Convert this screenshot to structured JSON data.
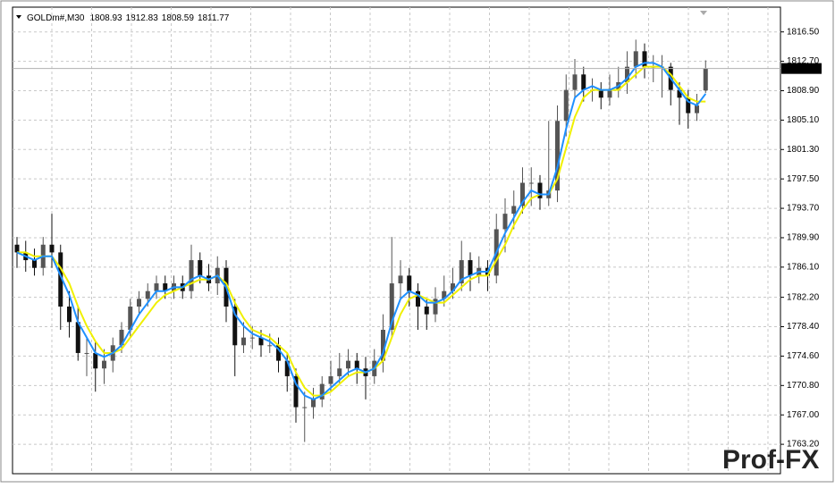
{
  "chart_data": {
    "type": "candlestick",
    "symbol": "GOLDm#,M30",
    "watermark": "Prof-FX",
    "up_color": "#555555",
    "down_color": "#111111",
    "grid": true,
    "ylim": [
      1759.4,
      1819.7
    ],
    "yticks": [
      {
        "value": 1763.2,
        "label": "1763.20"
      },
      {
        "value": 1767.0,
        "label": "1767.00"
      },
      {
        "value": 1770.8,
        "label": "1770.80"
      },
      {
        "value": 1774.6,
        "label": "1774.60"
      },
      {
        "value": 1778.4,
        "label": "1778.40"
      },
      {
        "value": 1782.2,
        "label": "1782.20"
      },
      {
        "value": 1786.1,
        "label": "1786.10"
      },
      {
        "value": 1789.9,
        "label": "1789.90"
      },
      {
        "value": 1793.7,
        "label": "1793.70"
      },
      {
        "value": 1797.5,
        "label": "1797.50"
      },
      {
        "value": 1801.3,
        "label": "1801.30"
      },
      {
        "value": 1805.1,
        "label": "1805.10"
      },
      {
        "value": 1808.9,
        "label": "1808.90"
      },
      {
        "value": 1812.7,
        "label": "1812.70"
      },
      {
        "value": 1816.5,
        "label": "1816.50"
      }
    ],
    "open": [
      1789,
      1788,
      1787,
      1786,
      1789,
      1788,
      1781,
      1779,
      1775,
      1775,
      1773,
      1774,
      1776,
      1778,
      1781,
      1782,
      1783,
      1784,
      1783,
      1784,
      1783,
      1787,
      1785,
      1784,
      1786,
      1781,
      1776,
      1777,
      1777,
      1776,
      1776,
      1774,
      1772,
      1768,
      1768,
      1769,
      1771,
      1772,
      1773,
      1774,
      1773,
      1772,
      1774,
      1778,
      1784,
      1785,
      1783,
      1781,
      1780,
      1782,
      1783,
      1784,
      1787,
      1785,
      1786,
      1785,
      1791,
      1793,
      1794,
      1797,
      1797,
      1795,
      1796,
      1805,
      1809,
      1811,
      1809,
      1809,
      1808,
      1809,
      1810,
      1812,
      1814,
      1812,
      1812,
      1812,
      1809,
      1808,
      1806,
      1808.93
    ],
    "high": [
      1790,
      1789.5,
      1788.5,
      1790,
      1793,
      1789,
      1783,
      1781,
      1777,
      1776.5,
      1775.5,
      1777,
      1779,
      1782,
      1783,
      1784,
      1785,
      1785,
      1785,
      1785,
      1789,
      1788,
      1786.5,
      1787.5,
      1787,
      1782,
      1779,
      1778.5,
      1778,
      1777.5,
      1777,
      1775,
      1773,
      1770,
      1770.5,
      1772,
      1774,
      1775,
      1775.5,
      1775,
      1774.5,
      1775.5,
      1780,
      1790,
      1787,
      1786,
      1784,
      1782,
      1783.5,
      1785,
      1786,
      1789.5,
      1788,
      1787.5,
      1787,
      1793,
      1795,
      1796,
      1799,
      1799,
      1798,
      1805,
      1807,
      1811,
      1813,
      1812,
      1810.5,
      1810,
      1811,
      1812,
      1814,
      1815.5,
      1815,
      1813.5,
      1813.5,
      1812.5,
      1810,
      1809,
      1808.5,
      1812.83
    ],
    "low": [
      1786,
      1785.5,
      1785,
      1785,
      1786,
      1778,
      1777,
      1774,
      1772,
      1770,
      1771,
      1772.5,
      1775,
      1777,
      1780,
      1781,
      1782,
      1782,
      1782,
      1782,
      1782,
      1784,
      1783,
      1782.5,
      1779,
      1772,
      1775,
      1775.5,
      1774.5,
      1775,
      1772.5,
      1770,
      1766,
      1763.5,
      1766.5,
      1768,
      1770,
      1771,
      1772,
      1771,
      1769,
      1771,
      1772.5,
      1777,
      1782,
      1781,
      1778,
      1778,
      1779,
      1781,
      1782,
      1783,
      1783,
      1784,
      1783,
      1784,
      1788,
      1791,
      1793,
      1794,
      1793.5,
      1794,
      1794.5,
      1803,
      1808,
      1807.5,
      1807.5,
      1806.5,
      1807,
      1808,
      1808.5,
      1810.5,
      1810.5,
      1810,
      1808,
      1807,
      1804.5,
      1804,
      1805,
      1808.59
    ],
    "close": [
      1788,
      1787,
      1786,
      1789,
      1788,
      1781,
      1779,
      1775,
      1775,
      1773,
      1774,
      1776,
      1778,
      1781,
      1782,
      1783,
      1784,
      1783,
      1784,
      1783,
      1787,
      1785,
      1784,
      1786,
      1781,
      1776,
      1777,
      1777,
      1776,
      1776,
      1774,
      1772,
      1768,
      1768,
      1769,
      1771,
      1772,
      1773,
      1774,
      1773,
      1772,
      1774,
      1778,
      1784,
      1785,
      1783,
      1781,
      1780,
      1782,
      1783,
      1784,
      1787,
      1785,
      1786,
      1785,
      1791,
      1793,
      1794,
      1797,
      1797,
      1795,
      1796,
      1805,
      1809,
      1811,
      1809,
      1809,
      1808,
      1809,
      1810,
      1812,
      1814,
      1812,
      1812,
      1812,
      1809,
      1808,
      1806,
      1807,
      1811.77
    ],
    "series": [
      {
        "color": "#f0f000",
        "values": [
          1788,
          1788,
          1787.5,
          1787.5,
          1787.5,
          1786,
          1784,
          1781,
          1778.5,
          1776.5,
          1775,
          1775,
          1775.5,
          1777,
          1778.5,
          1780,
          1781.5,
          1782.5,
          1783,
          1783.5,
          1784,
          1784.5,
          1784.5,
          1785,
          1784,
          1781.5,
          1779.5,
          1778,
          1777.5,
          1777,
          1776,
          1775,
          1772.5,
          1770.5,
          1769.5,
          1769.5,
          1770,
          1771,
          1772,
          1772.5,
          1772.5,
          1773,
          1774,
          1777,
          1780,
          1782,
          1782.5,
          1782,
          1781.5,
          1781.5,
          1782.5,
          1783.5,
          1784.5,
          1785,
          1785,
          1787,
          1789,
          1791.5,
          1793.5,
          1795,
          1795.5,
          1795.5,
          1797.5,
          1801.5,
          1805.5,
          1808,
          1809,
          1809,
          1809,
          1809,
          1810,
          1811,
          1812,
          1812,
          1812,
          1811,
          1809.5,
          1808,
          1807.5,
          1807.5
        ]
      },
      {
        "color": "#1e90ff",
        "values": [
          1788,
          1787.5,
          1787,
          1787.5,
          1787.5,
          1785,
          1782.5,
          1779,
          1777,
          1775,
          1774.5,
          1775,
          1776,
          1778,
          1780,
          1781.5,
          1783,
          1783,
          1783.5,
          1783.5,
          1784.5,
          1785,
          1784.5,
          1785,
          1783.5,
          1780,
          1778.5,
          1777.5,
          1777,
          1776.5,
          1775.5,
          1774,
          1771,
          1769.5,
          1769,
          1769.5,
          1770.5,
          1771.5,
          1772.5,
          1773,
          1772.5,
          1773,
          1775,
          1779,
          1782,
          1783,
          1782.5,
          1781.5,
          1781.5,
          1782,
          1783,
          1784.5,
          1785,
          1785.5,
          1785.5,
          1788,
          1790.5,
          1792.5,
          1794.5,
          1796,
          1795.5,
          1795.5,
          1799,
          1804,
          1808,
          1809,
          1809.5,
          1809,
          1809,
          1809.5,
          1810.5,
          1812,
          1812.5,
          1812.5,
          1812,
          1810.5,
          1809,
          1807.5,
          1807,
          1808.5
        ]
      }
    ]
  }
}
